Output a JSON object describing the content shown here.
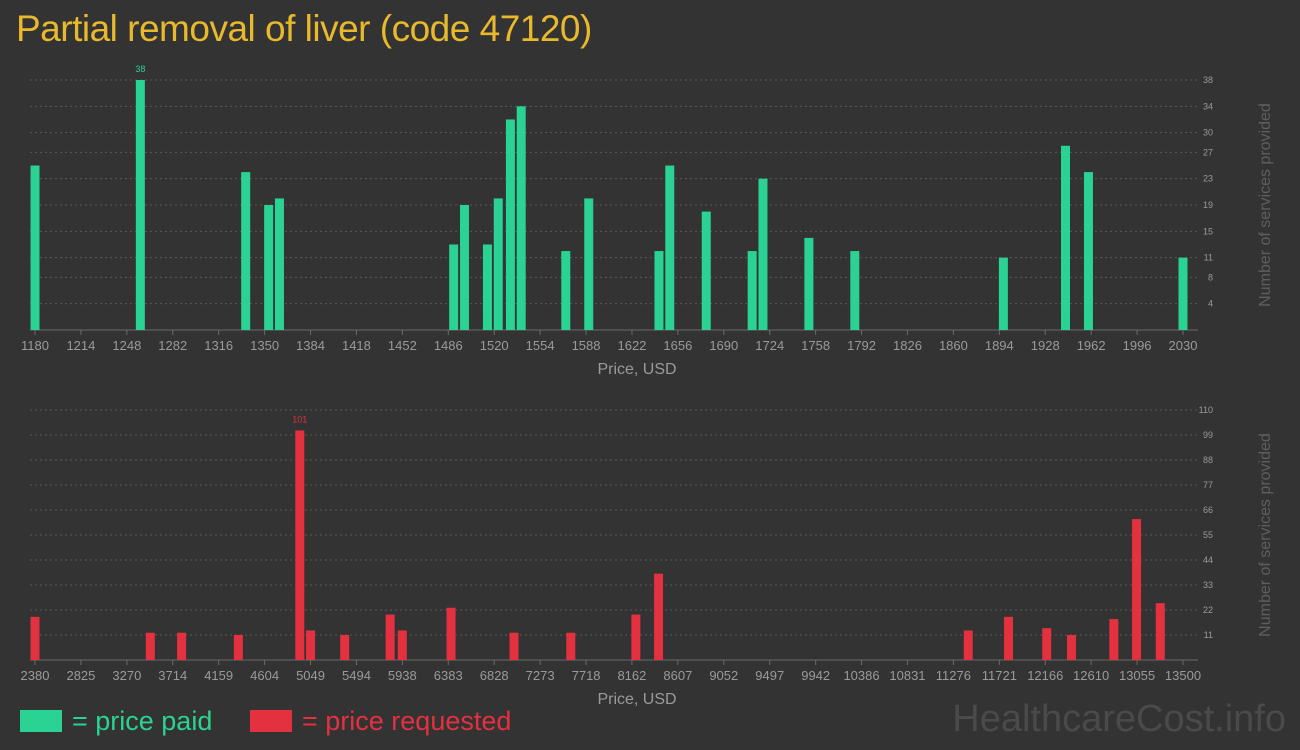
{
  "title": "Partial removal of liver (code 47120)",
  "legend": {
    "paid": "= price paid",
    "requested": "= price requested"
  },
  "brand": "HealthcareCost.info",
  "colors": {
    "paid": "#2ad394",
    "requested": "#e3313f",
    "title": "#e8b92c",
    "grid": "#5a5a5a",
    "tick": "#9a9a9a"
  },
  "chart_data": [
    {
      "type": "bar",
      "name": "paid",
      "xlabel": "Price, USD",
      "ylabel": "Number of services provided",
      "x_ticks": [
        1180,
        1214,
        1248,
        1282,
        1316,
        1350,
        1384,
        1418,
        1452,
        1486,
        1520,
        1554,
        1588,
        1622,
        1656,
        1690,
        1724,
        1758,
        1792,
        1826,
        1860,
        1894,
        1928,
        1962,
        1996,
        2030
      ],
      "xlim": [
        1180,
        2030
      ],
      "y_ticks": [
        4,
        8,
        11,
        15,
        19,
        23,
        27,
        30,
        34,
        38
      ],
      "ylim": [
        0,
        38
      ],
      "peak_label": "38",
      "bars": [
        {
          "x": 1180,
          "y": 25
        },
        {
          "x": 1258,
          "y": 38
        },
        {
          "x": 1336,
          "y": 24
        },
        {
          "x": 1353,
          "y": 19
        },
        {
          "x": 1361,
          "y": 20
        },
        {
          "x": 1490,
          "y": 13
        },
        {
          "x": 1498,
          "y": 19
        },
        {
          "x": 1515,
          "y": 13
        },
        {
          "x": 1523,
          "y": 20
        },
        {
          "x": 1532,
          "y": 32
        },
        {
          "x": 1540,
          "y": 34
        },
        {
          "x": 1573,
          "y": 12
        },
        {
          "x": 1590,
          "y": 20
        },
        {
          "x": 1642,
          "y": 12
        },
        {
          "x": 1650,
          "y": 25
        },
        {
          "x": 1677,
          "y": 18
        },
        {
          "x": 1711,
          "y": 12
        },
        {
          "x": 1719,
          "y": 23
        },
        {
          "x": 1753,
          "y": 14
        },
        {
          "x": 1787,
          "y": 12
        },
        {
          "x": 1897,
          "y": 11
        },
        {
          "x": 1943,
          "y": 28
        },
        {
          "x": 1960,
          "y": 24
        },
        {
          "x": 2030,
          "y": 11
        }
      ]
    },
    {
      "type": "bar",
      "name": "requested",
      "xlabel": "Price, USD",
      "ylabel": "Number of services provided",
      "x_ticks": [
        2380,
        2825,
        3270,
        3714,
        4159,
        4604,
        5049,
        5494,
        5938,
        6383,
        6828,
        7273,
        7718,
        8162,
        8607,
        9052,
        9497,
        9942,
        10386,
        10831,
        11276,
        11721,
        12166,
        12610,
        13055,
        13500
      ],
      "xlim": [
        2380,
        13500
      ],
      "y_ticks": [
        11,
        22,
        33,
        44,
        55,
        66,
        77,
        88,
        99,
        110
      ],
      "ylim": [
        0,
        110
      ],
      "peak_label": "101",
      "bars": [
        {
          "x": 2380,
          "y": 19
        },
        {
          "x": 3497,
          "y": 12
        },
        {
          "x": 3800,
          "y": 12
        },
        {
          "x": 4350,
          "y": 11
        },
        {
          "x": 4945,
          "y": 101
        },
        {
          "x": 5049,
          "y": 13
        },
        {
          "x": 5380,
          "y": 11
        },
        {
          "x": 5820,
          "y": 20
        },
        {
          "x": 5938,
          "y": 13
        },
        {
          "x": 6410,
          "y": 23
        },
        {
          "x": 7020,
          "y": 12
        },
        {
          "x": 7570,
          "y": 12
        },
        {
          "x": 8200,
          "y": 20
        },
        {
          "x": 8420,
          "y": 38
        },
        {
          "x": 11420,
          "y": 13
        },
        {
          "x": 11810,
          "y": 19
        },
        {
          "x": 12180,
          "y": 14
        },
        {
          "x": 12420,
          "y": 11
        },
        {
          "x": 12830,
          "y": 18
        },
        {
          "x": 13050,
          "y": 62
        },
        {
          "x": 13280,
          "y": 25
        }
      ]
    }
  ]
}
